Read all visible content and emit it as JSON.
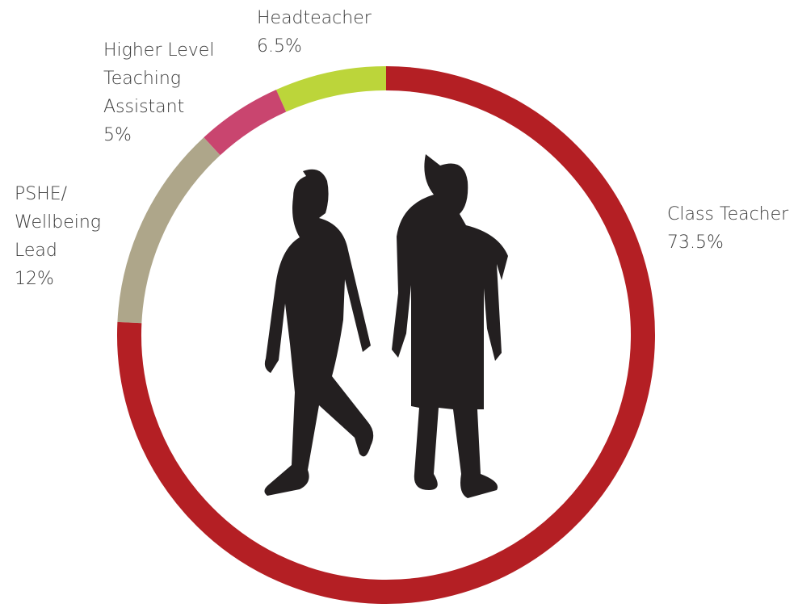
{
  "chart_data": {
    "type": "donut",
    "categories": [
      "Class Teacher",
      "PSHE/ Wellbeing Lead",
      "Higher Level Teaching Assistant",
      "Headteacher"
    ],
    "values": [
      73.5,
      12,
      5,
      6.5
    ],
    "value_labels": [
      "73.5%",
      "12%",
      "5%",
      "6.5%"
    ],
    "colors": [
      "#b41f24",
      "#aea68a",
      "#c9456f",
      "#bcd53a"
    ]
  }
}
